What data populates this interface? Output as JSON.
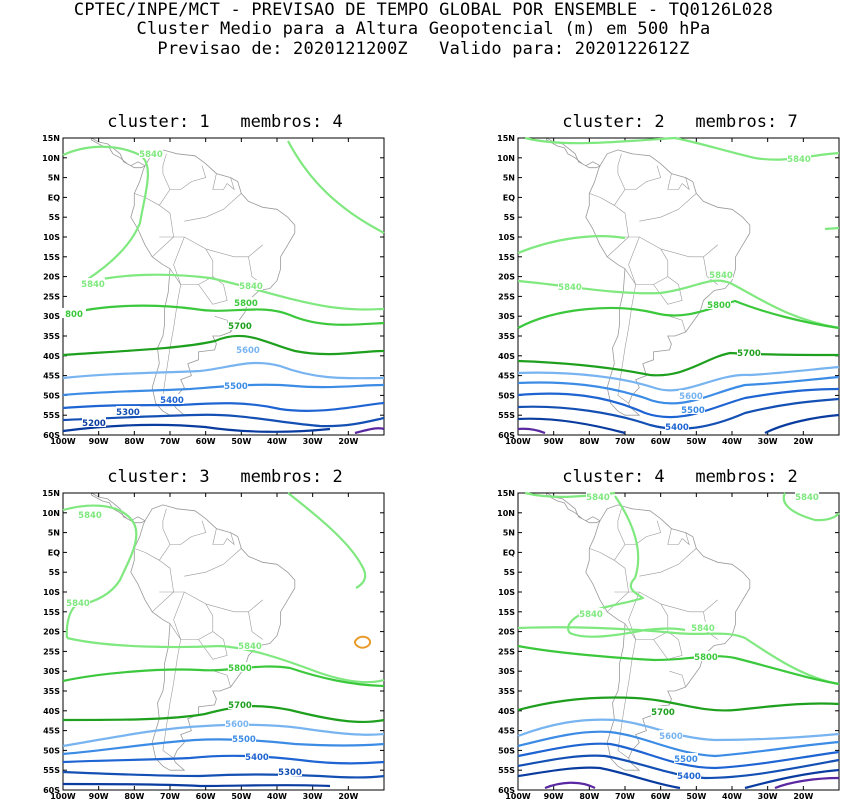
{
  "header": {
    "line1": "CPTEC/INPE/MCT - PREVISAO DE TEMPO GLOBAL POR ENSEMBLE - TQ0126L028",
    "line2": "Cluster Medio para a Altura Geopotencial (m) em 500 hPa",
    "line3": "Previsao de: 2020121200Z   Valido para: 2020122612Z"
  },
  "axes": {
    "lat_labels": [
      "15N",
      "10N",
      "5N",
      "EQ",
      "5S",
      "10S",
      "15S",
      "20S",
      "25S",
      "30S",
      "35S",
      "40S",
      "45S",
      "50S",
      "55S",
      "60S"
    ],
    "lon_labels": [
      "100W",
      "90W",
      "80W",
      "70W",
      "60W",
      "50W",
      "40W",
      "30W",
      "20W"
    ]
  },
  "colors": {
    "c5840": "#7fe87f",
    "c5800": "#3cc83c",
    "c5700": "#1ea01e",
    "c5600": "#78b4f0",
    "c5500": "#3c8ce6",
    "c5400": "#1e64d2",
    "c5300": "#1450b4",
    "c5200": "#0a3ca0",
    "c5100": "#5a28a0",
    "c5880": "#e89a2a",
    "land": "#9a9a9a"
  },
  "panels": [
    {
      "title": "cluster: 1   membros: 4",
      "contour_labels": [
        "5840",
        "5840",
        "5840",
        "5800",
        "800",
        "5700",
        "5600",
        "5500",
        "5400",
        "5300",
        "5200"
      ]
    },
    {
      "title": "cluster: 2   membros: 7",
      "contour_labels": [
        "5840",
        "5840",
        "5840",
        "5800",
        "5700",
        "5600",
        "5500",
        "5400"
      ]
    },
    {
      "title": "cluster: 3   membros: 2",
      "contour_labels": [
        "5840",
        "5840",
        "5840",
        "5800",
        "5700",
        "5600",
        "5500",
        "5400",
        "5300"
      ]
    },
    {
      "title": "cluster: 4   membros: 2",
      "contour_labels": [
        "5840",
        "5840",
        "5840",
        "5840",
        "5800",
        "5700",
        "5600",
        "5500",
        "5400"
      ]
    }
  ]
}
